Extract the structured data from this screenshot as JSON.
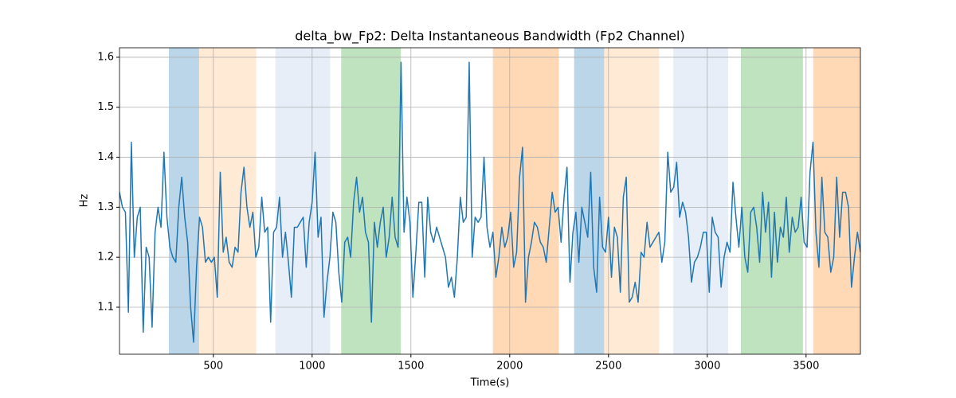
{
  "chart_data": {
    "type": "line",
    "title": "delta_bw_Fp2: Delta Instantaneous Bandwidth (Fp2 Channel)",
    "xlabel": "Time(s)",
    "ylabel": "Hz",
    "xlim": [
      25,
      3775
    ],
    "ylim": [
      1.006,
      1.619
    ],
    "xticks": [
      500,
      1000,
      1500,
      2000,
      2500,
      3000,
      3500
    ],
    "yticks": [
      1.1,
      1.2,
      1.3,
      1.4,
      1.5,
      1.6
    ],
    "grid": true,
    "color": "#1f77b4",
    "span_alpha": 0.3,
    "spans": [
      {
        "start": 275,
        "end": 428,
        "color": "#1f77b4"
      },
      {
        "start": 428,
        "end": 717,
        "color": "#ffbb78"
      },
      {
        "start": 814,
        "end": 1091,
        "color": "#aec7e8"
      },
      {
        "start": 1147,
        "end": 1449,
        "color": "#2ca02c"
      },
      {
        "start": 1915,
        "end": 2249,
        "color": "#ff7f0e"
      },
      {
        "start": 2326,
        "end": 2478,
        "color": "#1f77b4"
      },
      {
        "start": 2478,
        "end": 2756,
        "color": "#ffbb78"
      },
      {
        "start": 2828,
        "end": 3106,
        "color": "#aec7e8"
      },
      {
        "start": 3170,
        "end": 3484,
        "color": "#2ca02c"
      },
      {
        "start": 3536,
        "end": 3775,
        "color": "#ff7f0e"
      }
    ],
    "x": [
      25,
      40,
      55,
      70,
      85,
      100,
      115,
      130,
      145,
      160,
      175,
      190,
      205,
      220,
      235,
      250,
      265,
      280,
      295,
      310,
      325,
      340,
      355,
      370,
      385,
      400,
      415,
      430,
      445,
      460,
      475,
      490,
      505,
      520,
      535,
      550,
      565,
      580,
      595,
      610,
      625,
      640,
      655,
      670,
      685,
      700,
      715,
      730,
      745,
      760,
      775,
      790,
      805,
      820,
      835,
      850,
      865,
      880,
      895,
      910,
      925,
      940,
      955,
      970,
      985,
      1000,
      1015,
      1030,
      1045,
      1060,
      1075,
      1090,
      1105,
      1120,
      1135,
      1150,
      1165,
      1180,
      1195,
      1210,
      1225,
      1240,
      1255,
      1270,
      1285,
      1300,
      1315,
      1330,
      1345,
      1360,
      1375,
      1390,
      1405,
      1420,
      1435,
      1450,
      1465,
      1480,
      1495,
      1510,
      1525,
      1540,
      1555,
      1570,
      1585,
      1600,
      1615,
      1630,
      1645,
      1660,
      1675,
      1690,
      1705,
      1720,
      1735,
      1750,
      1765,
      1780,
      1795,
      1810,
      1825,
      1840,
      1855,
      1870,
      1885,
      1900,
      1915,
      1930,
      1945,
      1960,
      1975,
      1990,
      2005,
      2020,
      2035,
      2050,
      2065,
      2080,
      2095,
      2110,
      2125,
      2140,
      2155,
      2170,
      2185,
      2200,
      2215,
      2230,
      2245,
      2260,
      2275,
      2290,
      2305,
      2320,
      2335,
      2350,
      2365,
      2380,
      2395,
      2410,
      2425,
      2440,
      2455,
      2470,
      2485,
      2500,
      2515,
      2530,
      2545,
      2560,
      2575,
      2590,
      2605,
      2620,
      2635,
      2650,
      2665,
      2680,
      2695,
      2710,
      2725,
      2740,
      2755,
      2770,
      2785,
      2800,
      2815,
      2830,
      2845,
      2860,
      2875,
      2890,
      2905,
      2920,
      2935,
      2950,
      2965,
      2980,
      2995,
      3010,
      3025,
      3040,
      3055,
      3070,
      3085,
      3100,
      3115,
      3130,
      3145,
      3160,
      3175,
      3190,
      3205,
      3220,
      3235,
      3250,
      3265,
      3280,
      3295,
      3310,
      3325,
      3340,
      3355,
      3370,
      3385,
      3400,
      3415,
      3430,
      3445,
      3460,
      3475,
      3490,
      3505,
      3520,
      3535,
      3550,
      3565,
      3580,
      3595,
      3610,
      3625,
      3640,
      3655,
      3670,
      3685,
      3700,
      3715,
      3730,
      3745,
      3760,
      3775
    ],
    "values": [
      1.33,
      1.3,
      1.29,
      1.09,
      1.43,
      1.2,
      1.28,
      1.3,
      1.05,
      1.22,
      1.2,
      1.06,
      1.25,
      1.3,
      1.26,
      1.41,
      1.28,
      1.22,
      1.2,
      1.19,
      1.3,
      1.36,
      1.28,
      1.23,
      1.1,
      1.03,
      1.18,
      1.28,
      1.26,
      1.19,
      1.2,
      1.19,
      1.2,
      1.12,
      1.37,
      1.21,
      1.24,
      1.19,
      1.18,
      1.22,
      1.21,
      1.33,
      1.38,
      1.3,
      1.26,
      1.29,
      1.2,
      1.22,
      1.32,
      1.25,
      1.26,
      1.07,
      1.25,
      1.26,
      1.32,
      1.2,
      1.25,
      1.19,
      1.12,
      1.26,
      1.26,
      1.27,
      1.28,
      1.18,
      1.27,
      1.31,
      1.41,
      1.24,
      1.28,
      1.08,
      1.15,
      1.2,
      1.29,
      1.27,
      1.17,
      1.11,
      1.23,
      1.24,
      1.2,
      1.31,
      1.36,
      1.29,
      1.32,
      1.25,
      1.23,
      1.07,
      1.27,
      1.22,
      1.27,
      1.3,
      1.2,
      1.24,
      1.32,
      1.24,
      1.22,
      1.59,
      1.25,
      1.32,
      1.27,
      1.12,
      1.21,
      1.31,
      1.31,
      1.16,
      1.32,
      1.25,
      1.23,
      1.26,
      1.24,
      1.22,
      1.2,
      1.14,
      1.16,
      1.12,
      1.2,
      1.32,
      1.27,
      1.28,
      1.59,
      1.2,
      1.28,
      1.27,
      1.28,
      1.4,
      1.26,
      1.22,
      1.25,
      1.16,
      1.2,
      1.26,
      1.22,
      1.24,
      1.29,
      1.18,
      1.21,
      1.36,
      1.42,
      1.11,
      1.2,
      1.23,
      1.27,
      1.26,
      1.23,
      1.22,
      1.19,
      1.26,
      1.33,
      1.29,
      1.3,
      1.23,
      1.32,
      1.38,
      1.15,
      1.25,
      1.29,
      1.19,
      1.3,
      1.27,
      1.24,
      1.37,
      1.18,
      1.13,
      1.32,
      1.22,
      1.21,
      1.28,
      1.16,
      1.26,
      1.24,
      1.13,
      1.32,
      1.36,
      1.11,
      1.12,
      1.15,
      1.11,
      1.21,
      1.2,
      1.27,
      1.22,
      1.23,
      1.24,
      1.25,
      1.19,
      1.23,
      1.41,
      1.33,
      1.34,
      1.39,
      1.28,
      1.31,
      1.29,
      1.24,
      1.15,
      1.19,
      1.2,
      1.22,
      1.25,
      1.25,
      1.13,
      1.28,
      1.25,
      1.24,
      1.14,
      1.2,
      1.23,
      1.21,
      1.35,
      1.28,
      1.22,
      1.3,
      1.2,
      1.17,
      1.29,
      1.3,
      1.26,
      1.19,
      1.33,
      1.25,
      1.31,
      1.16,
      1.29,
      1.19,
      1.26,
      1.24,
      1.32,
      1.21,
      1.28,
      1.25,
      1.26,
      1.32,
      1.23,
      1.22,
      1.37,
      1.43,
      1.25,
      1.18,
      1.36,
      1.25,
      1.24,
      1.17,
      1.2,
      1.36,
      1.24,
      1.33,
      1.33,
      1.3,
      1.14,
      1.2,
      1.25,
      1.21
    ]
  }
}
